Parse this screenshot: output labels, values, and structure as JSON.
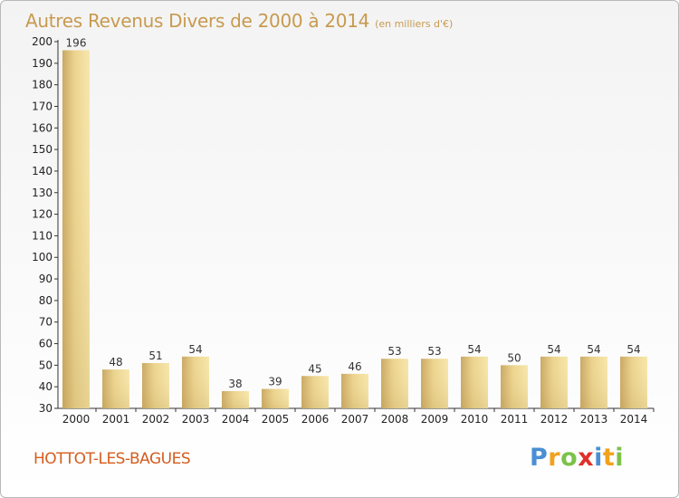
{
  "title": "Autres Revenus Divers de 2000 à 2014",
  "subtitle": "(en milliers d'€)",
  "place": "HOTTOT-LES-BAGUES",
  "brand": {
    "letters": [
      "P",
      "r",
      "o",
      "x",
      "i",
      "t",
      "i"
    ],
    "colors": [
      "#4a8fd4",
      "#f0a21e",
      "#7cc24a",
      "#e0302a",
      "#4a8fd4",
      "#f0a21e",
      "#7cc24a"
    ]
  },
  "colors": {
    "title": "#c89a4f",
    "place": "#d45d1e",
    "bar_light": "#f5e3a6",
    "bar_dark": "#d8bd78"
  },
  "chart_data": {
    "type": "bar",
    "categories": [
      "2000",
      "2001",
      "2002",
      "2003",
      "2004",
      "2005",
      "2006",
      "2007",
      "2008",
      "2009",
      "2010",
      "2011",
      "2012",
      "2013",
      "2014"
    ],
    "values": [
      196,
      48,
      51,
      54,
      38,
      39,
      45,
      46,
      53,
      53,
      54,
      50,
      54,
      54,
      54
    ],
    "title": "Autres Revenus Divers de 2000 à 2014",
    "xlabel": "",
    "ylabel": "",
    "ylim": [
      30,
      200
    ],
    "yticks": [
      30,
      40,
      50,
      60,
      70,
      80,
      90,
      100,
      110,
      120,
      130,
      140,
      150,
      160,
      170,
      180,
      190,
      200
    ],
    "grid": false,
    "data_labels": true
  }
}
